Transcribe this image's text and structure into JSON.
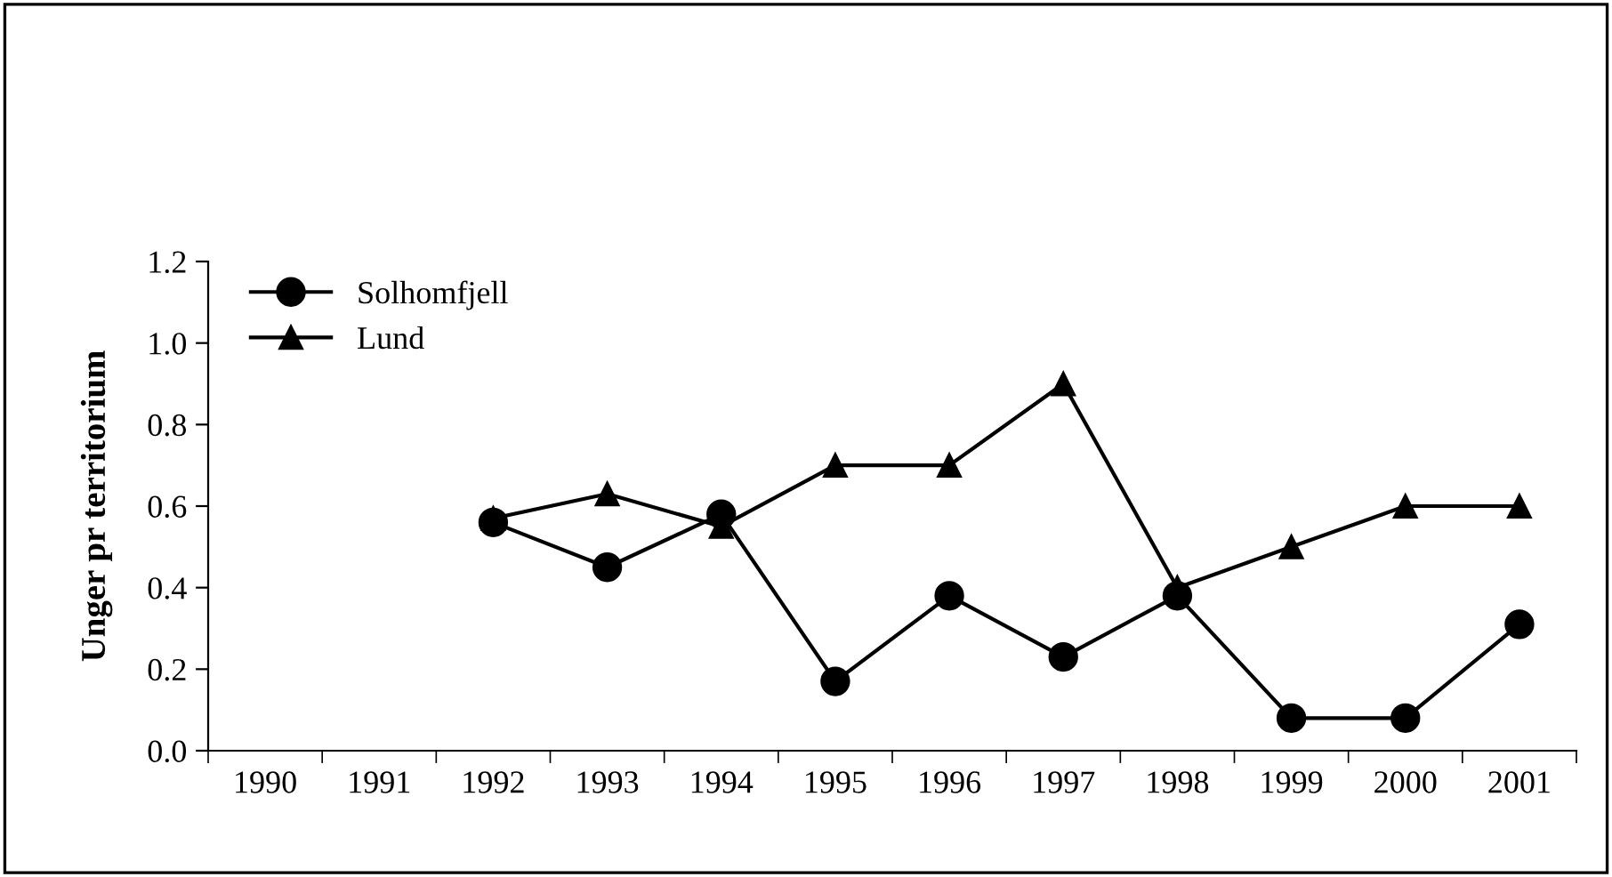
{
  "chart_data": {
    "type": "line",
    "ylabel": "Unger pr territorium",
    "categories": [
      "1990",
      "1991",
      "1992",
      "1993",
      "1994",
      "1995",
      "1996",
      "1997",
      "1998",
      "1999",
      "2000",
      "2001"
    ],
    "series": [
      {
        "name": "Solhomfjell",
        "color": "#000000",
        "marker": "circle",
        "values": [
          null,
          null,
          0.56,
          0.45,
          0.58,
          0.17,
          0.38,
          0.23,
          0.38,
          0.08,
          0.08,
          0.31
        ]
      },
      {
        "name": "Lund",
        "color": "#000000",
        "marker": "triangle",
        "values": [
          null,
          null,
          0.57,
          0.63,
          0.55,
          0.7,
          0.7,
          0.9,
          0.4,
          0.5,
          0.6,
          0.6
        ]
      }
    ],
    "ylim": [
      0,
      1.2
    ],
    "yticks": [
      {
        "value": 0,
        "label": "0.0"
      },
      {
        "value": 0.2,
        "label": "0.2"
      },
      {
        "value": 0.4,
        "label": "0.4"
      },
      {
        "value": 0.6,
        "label": "0.6"
      },
      {
        "value": 0.8,
        "label": "0.8"
      },
      {
        "value": 1.0,
        "label": "1.0"
      },
      {
        "value": 1.2,
        "label": "1.2"
      }
    ],
    "grid": false,
    "legend": "top left",
    "line_style": "solid"
  }
}
